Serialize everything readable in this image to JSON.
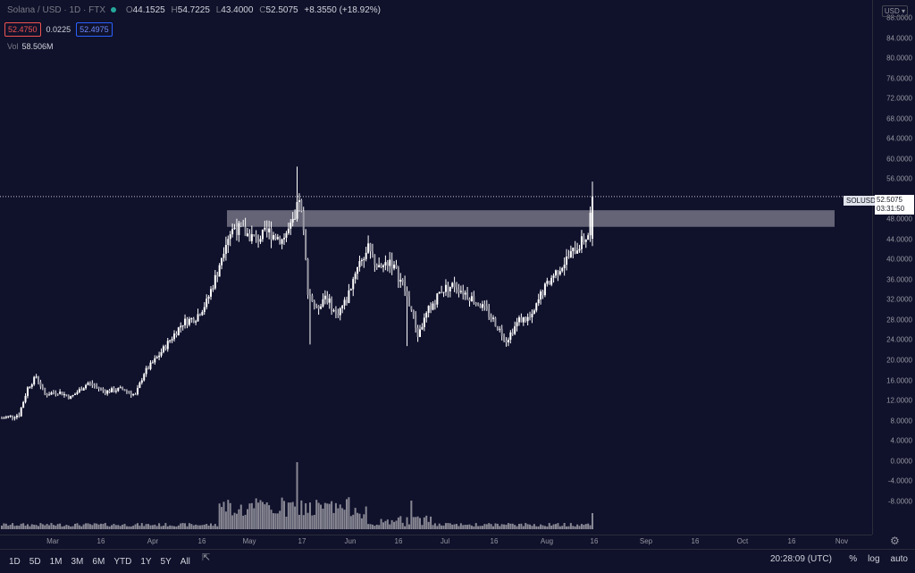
{
  "header": {
    "symbol": "Solana / USD · 1D · FTX",
    "ohlc": [
      {
        "k": "O",
        "v": "44.1525"
      },
      {
        "k": "H",
        "v": "54.7225"
      },
      {
        "k": "L",
        "v": "43.4000"
      },
      {
        "k": "C",
        "v": "52.5075"
      }
    ],
    "change": "+8.3550 (+18.92%)",
    "sell_price": "52.4750",
    "spread": "0.0225",
    "buy_price": "52.4975",
    "vol_label": "Vol",
    "vol_value": "58.506M",
    "currency": "USD"
  },
  "price_tag": {
    "symbol": "SOLUSD",
    "price": "52.5075",
    "countdown": "03:31:50"
  },
  "bottom": {
    "ranges": [
      "1D",
      "5D",
      "1M",
      "3M",
      "6M",
      "YTD",
      "1Y",
      "5Y",
      "All"
    ],
    "clock": "20:28:09 (UTC)",
    "percent": "%",
    "log": "log",
    "auto": "auto"
  },
  "colors": {
    "background": "#10112b",
    "candle": "#ffffff",
    "volume": "#b0b0b8",
    "zone": "#d9d9de"
  },
  "chart_data": {
    "type": "candlestick",
    "symbol": "SOLUSD",
    "ylim": [
      -10,
      88
    ],
    "y_ticks": [
      "88.0000",
      "84.0000",
      "80.0000",
      "76.0000",
      "72.0000",
      "68.0000",
      "64.0000",
      "60.0000",
      "56.0000",
      "52.0000",
      "48.0000",
      "44.0000",
      "40.0000",
      "36.0000",
      "32.0000",
      "28.0000",
      "24.0000",
      "20.0000",
      "16.0000",
      "12.0000",
      "8.0000",
      "4.0000",
      "0.0000",
      "-4.0000",
      "-8.0000"
    ],
    "x_ticks": [
      "Mar",
      "16",
      "Apr",
      "16",
      "May",
      "17",
      "Jun",
      "16",
      "Jul",
      "16",
      "Aug",
      "16",
      "Sep",
      "16",
      "Oct",
      "16",
      "Nov"
    ],
    "current_price": 52.5075,
    "resistance_zone": [
      46.5,
      49.8
    ],
    "close_path": [
      {
        "day": 0,
        "close": 8.5
      },
      {
        "day": 8,
        "close": 9.2
      },
      {
        "day": 12,
        "close": 14.5
      },
      {
        "day": 16,
        "close": 16.8
      },
      {
        "day": 20,
        "close": 13.2
      },
      {
        "day": 26,
        "close": 13.8
      },
      {
        "day": 32,
        "close": 12.6
      },
      {
        "day": 40,
        "close": 15.5
      },
      {
        "day": 48,
        "close": 13.8
      },
      {
        "day": 56,
        "close": 14.3
      },
      {
        "day": 62,
        "close": 13.0
      },
      {
        "day": 66,
        "close": 17.5
      },
      {
        "day": 72,
        "close": 20.5
      },
      {
        "day": 78,
        "close": 24.0
      },
      {
        "day": 84,
        "close": 27.5
      },
      {
        "day": 90,
        "close": 28.5
      },
      {
        "day": 95,
        "close": 31.5
      },
      {
        "day": 100,
        "close": 37.5
      },
      {
        "day": 104,
        "close": 44.0
      },
      {
        "day": 108,
        "close": 46.5
      },
      {
        "day": 114,
        "close": 45.0
      },
      {
        "day": 118,
        "close": 44.0
      },
      {
        "day": 124,
        "close": 45.5
      },
      {
        "day": 130,
        "close": 44.0
      },
      {
        "day": 136,
        "close": 47.5
      },
      {
        "day": 138,
        "close": 52.5
      },
      {
        "day": 140,
        "close": 45.0
      },
      {
        "day": 142,
        "close": 34.0
      },
      {
        "day": 146,
        "close": 30.0
      },
      {
        "day": 150,
        "close": 33.0
      },
      {
        "day": 155,
        "close": 29.0
      },
      {
        "day": 160,
        "close": 32.0
      },
      {
        "day": 165,
        "close": 39.0
      },
      {
        "day": 170,
        "close": 42.0
      },
      {
        "day": 175,
        "close": 38.0
      },
      {
        "day": 180,
        "close": 40.0
      },
      {
        "day": 186,
        "close": 35.0
      },
      {
        "day": 190,
        "close": 30.0
      },
      {
        "day": 193,
        "close": 25.0
      },
      {
        "day": 198,
        "close": 30.0
      },
      {
        "day": 204,
        "close": 34.0
      },
      {
        "day": 210,
        "close": 35.0
      },
      {
        "day": 216,
        "close": 33.0
      },
      {
        "day": 222,
        "close": 31.0
      },
      {
        "day": 228,
        "close": 28.0
      },
      {
        "day": 234,
        "close": 24.0
      },
      {
        "day": 240,
        "close": 28.0
      },
      {
        "day": 246,
        "close": 28.5
      },
      {
        "day": 250,
        "close": 33.0
      },
      {
        "day": 256,
        "close": 37.0
      },
      {
        "day": 262,
        "close": 40.0
      },
      {
        "day": 268,
        "close": 43.0
      },
      {
        "day": 272,
        "close": 45.0
      },
      {
        "day": 274,
        "close": 52.5
      }
    ]
  }
}
